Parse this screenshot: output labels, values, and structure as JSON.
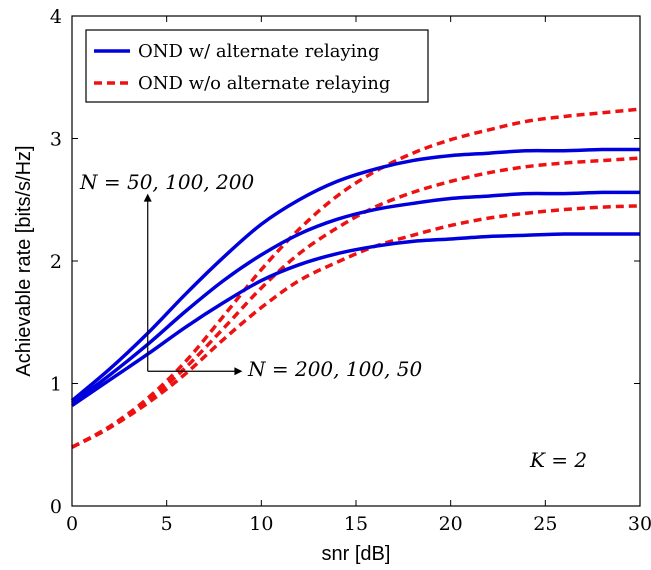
{
  "chart_data": {
    "type": "line",
    "xlabel": "snr [dB]",
    "ylabel": "Achievable rate [bits/s/Hz]",
    "xlim": [
      0,
      30
    ],
    "ylim": [
      0,
      4
    ],
    "xticks": [
      0,
      5,
      10,
      15,
      20,
      25,
      30
    ],
    "yticks": [
      0,
      1,
      2,
      3,
      4
    ],
    "grid": false,
    "legend_position": "top-left",
    "legend": [
      {
        "label": "OND w/ alternate relaying",
        "color": "#0000dd",
        "style": "solid"
      },
      {
        "label": "OND w/o alternate relaying",
        "color": "#ee1111",
        "style": "dashed"
      }
    ],
    "x": [
      0,
      2,
      4,
      6,
      8,
      10,
      12,
      14,
      16,
      18,
      20,
      22,
      24,
      26,
      28,
      30
    ],
    "series": [
      {
        "group": "OND w/ alternate relaying",
        "N": 50,
        "values": [
          0.82,
          1.03,
          1.24,
          1.46,
          1.66,
          1.84,
          1.97,
          2.06,
          2.12,
          2.16,
          2.18,
          2.2,
          2.21,
          2.22,
          2.22,
          2.22
        ]
      },
      {
        "group": "OND w/ alternate relaying",
        "N": 100,
        "values": [
          0.84,
          1.07,
          1.32,
          1.59,
          1.84,
          2.05,
          2.22,
          2.34,
          2.42,
          2.47,
          2.51,
          2.53,
          2.55,
          2.55,
          2.56,
          2.56
        ]
      },
      {
        "group": "OND w/ alternate relaying",
        "N": 200,
        "values": [
          0.86,
          1.12,
          1.41,
          1.73,
          2.03,
          2.3,
          2.5,
          2.65,
          2.75,
          2.82,
          2.86,
          2.88,
          2.9,
          2.9,
          2.91,
          2.91
        ]
      },
      {
        "group": "OND w/o alternate relaying",
        "N": 50,
        "values": [
          0.48,
          0.64,
          0.84,
          1.08,
          1.36,
          1.62,
          1.84,
          1.99,
          2.12,
          2.21,
          2.29,
          2.35,
          2.39,
          2.42,
          2.44,
          2.45
        ]
      },
      {
        "group": "OND w/o alternate relaying",
        "N": 100,
        "values": [
          0.48,
          0.64,
          0.86,
          1.13,
          1.45,
          1.78,
          2.06,
          2.27,
          2.44,
          2.56,
          2.65,
          2.72,
          2.77,
          2.8,
          2.82,
          2.84
        ]
      },
      {
        "group": "OND w/o alternate relaying",
        "N": 200,
        "values": [
          0.48,
          0.65,
          0.88,
          1.18,
          1.55,
          1.93,
          2.26,
          2.53,
          2.73,
          2.88,
          2.99,
          3.07,
          3.14,
          3.18,
          3.21,
          3.24
        ]
      }
    ],
    "annotations": [
      {
        "text": "N = 50, 100, 200",
        "arrow": "up",
        "arrow_x": 4,
        "arrow_from_y": 1.1,
        "arrow_to_y": 2.55
      },
      {
        "text": "N = 200, 100, 50",
        "arrow": "right",
        "arrow_y": 1.1,
        "arrow_from_x": 4,
        "arrow_to_x": 9
      },
      {
        "text": "K = 2"
      }
    ]
  }
}
